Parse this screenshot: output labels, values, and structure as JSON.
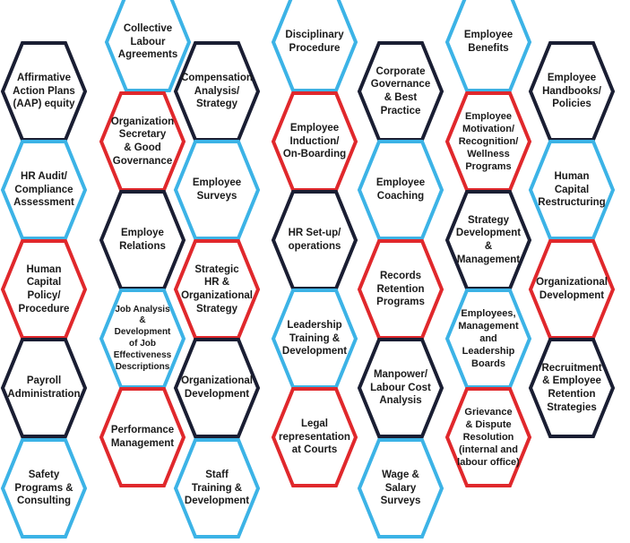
{
  "colors": {
    "blue": "#3cb3e6",
    "red": "#e0282c",
    "navy": "#1a1e33"
  },
  "hexagons": [
    {
      "text": "Collective\nLabour\nAgreements",
      "color": "blue"
    },
    {
      "text": "Disciplinary\nProcedure",
      "color": "blue"
    },
    {
      "text": "Employee\nBenefits",
      "color": "blue"
    },
    {
      "text": "Affirmative\nAction Plans\n(AAP) equity",
      "color": "navy"
    },
    {
      "text": "Compensation\nAnalysis/\nStrategy",
      "color": "navy"
    },
    {
      "text": "Corporate\nGovernance\n& Best\nPractice",
      "color": "navy"
    },
    {
      "text": "Employee\nHandbooks/\nPolicies",
      "color": "navy"
    },
    {
      "text": "Organization\nSecretary\n& Good\nGovernance",
      "color": "red"
    },
    {
      "text": "Employee\nInduction/\nOn-Boarding",
      "color": "red"
    },
    {
      "text": "Employee\nMotivation/\nRecognition/\nWellness\nPrograms",
      "color": "red"
    },
    {
      "text": "HR Audit/\nCompliance\nAssessment",
      "color": "blue"
    },
    {
      "text": "Employee\nSurveys",
      "color": "blue"
    },
    {
      "text": "Employee\nCoaching",
      "color": "blue"
    },
    {
      "text": "Human\nCapital\nRestructuring",
      "color": "blue"
    },
    {
      "text": "Employe\nRelations",
      "color": "navy"
    },
    {
      "text": "HR Set-up/\noperations",
      "color": "navy"
    },
    {
      "text": "Strategy\nDevelopment\n&\nManagement",
      "color": "navy"
    },
    {
      "text": "Human\nCapital\nPolicy/\nProcedure",
      "color": "red"
    },
    {
      "text": "Strategic\nHR &\nOrganizational\nStrategy",
      "color": "red"
    },
    {
      "text": "Records\nRetention\nPrograms",
      "color": "red"
    },
    {
      "text": "Organizational\nDevelopment",
      "color": "red"
    },
    {
      "text": "Job Analysis\n&\nDevelopment\nof Job\nEffectiveness\nDescriptions",
      "color": "blue"
    },
    {
      "text": "Leadership\nTraining &\nDevelopment",
      "color": "blue"
    },
    {
      "text": "Employees,\nManagement\nand\nLeadership\nBoards",
      "color": "blue"
    },
    {
      "text": "Payroll\nAdministration",
      "color": "navy"
    },
    {
      "text": "Organizational\nDevelopment",
      "color": "navy"
    },
    {
      "text": "Manpower/\nLabour Cost\nAnalysis",
      "color": "navy"
    },
    {
      "text": "Recruitment\n& Employee\nRetention\nStrategies",
      "color": "navy"
    },
    {
      "text": "Performance\nManagement",
      "color": "red"
    },
    {
      "text": "Legal\nrepresentation\nat Courts",
      "color": "red"
    },
    {
      "text": "Grievance\n& Dispute\nResolution\n(internal and\nlabour office)",
      "color": "red"
    },
    {
      "text": "Safety\nPrograms &\nConsulting",
      "color": "blue"
    },
    {
      "text": "Staff\nTraining &\nDevelopment",
      "color": "blue"
    },
    {
      "text": "Wage &\nSalary\nSurveys",
      "color": "blue"
    }
  ]
}
